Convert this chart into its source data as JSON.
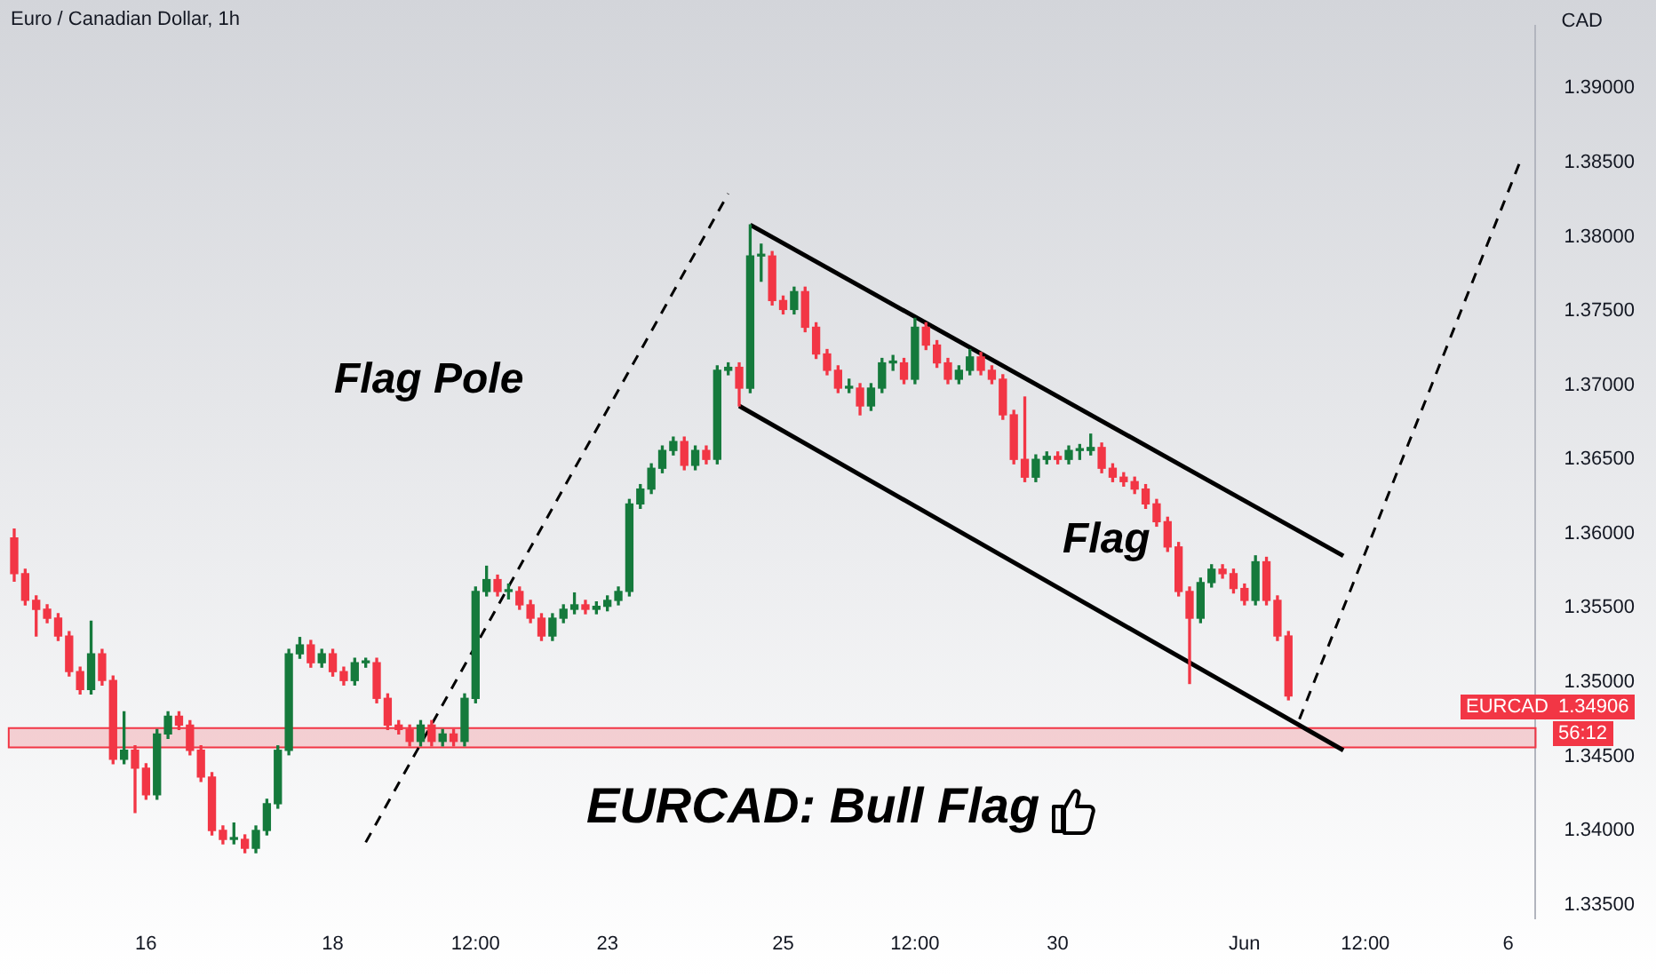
{
  "chart_data": {
    "type": "candlestick",
    "title": "Euro / Canadian Dollar, 1h",
    "ylabel": "CAD",
    "categories": [
      null,
      null,
      null,
      null,
      null,
      null,
      null,
      null,
      null,
      null,
      null,
      null,
      "16",
      null,
      null,
      null,
      null,
      null,
      null,
      null,
      null,
      null,
      null,
      null,
      null,
      null,
      null,
      null,
      null,
      "18",
      null,
      null,
      null,
      null,
      null,
      null,
      null,
      null,
      null,
      null,
      null,
      null,
      "12:00",
      null,
      null,
      null,
      null,
      null,
      null,
      null,
      null,
      null,
      null,
      null,
      "23",
      null,
      null,
      null,
      null,
      null,
      null,
      null,
      null,
      null,
      null,
      null,
      null,
      null,
      null,
      null,
      "25",
      null,
      null,
      null,
      null,
      null,
      null,
      null,
      null,
      null,
      null,
      null,
      "12:00",
      null,
      null,
      null,
      null,
      null,
      null,
      null,
      null,
      null,
      null,
      null,
      null,
      "30",
      null,
      null,
      null,
      null,
      null,
      null,
      null,
      null,
      null,
      null,
      null,
      null,
      null,
      null,
      null,
      null,
      "Jun",
      null,
      null,
      null,
      null,
      null,
      null,
      null,
      null,
      null,
      null,
      "12:00",
      null,
      null,
      null,
      null,
      null,
      null,
      null,
      null,
      null,
      null,
      null,
      null,
      "6",
      null,
      null
    ],
    "ohlc": [
      [
        1.3597,
        1.3603,
        1.3568,
        1.3573
      ],
      [
        1.3573,
        1.3576,
        1.3552,
        1.3555
      ],
      [
        1.3555,
        1.3558,
        1.3531,
        1.3549
      ],
      [
        1.3549,
        1.3552,
        1.354,
        1.3543
      ],
      [
        1.3543,
        1.3546,
        1.3528,
        1.3531
      ],
      [
        1.3531,
        1.3534,
        1.3504,
        1.3507
      ],
      [
        1.3507,
        1.351,
        1.3492,
        1.3495
      ],
      [
        1.3495,
        1.3541,
        1.3492,
        1.3519
      ],
      [
        1.3519,
        1.3522,
        1.3498,
        1.3501
      ],
      [
        1.3501,
        1.3504,
        1.3445,
        1.3448
      ],
      [
        1.3448,
        1.348,
        1.3445,
        1.3454
      ],
      [
        1.3454,
        1.3457,
        1.3412,
        1.3442
      ],
      [
        1.3442,
        1.3445,
        1.3421,
        1.3424
      ],
      [
        1.3424,
        1.3468,
        1.3421,
        1.3465
      ],
      [
        1.3465,
        1.348,
        1.3462,
        1.3477
      ],
      [
        1.3477,
        1.348,
        1.3468,
        1.3471
      ],
      [
        1.3471,
        1.3474,
        1.3451,
        1.3454
      ],
      [
        1.3454,
        1.3457,
        1.3433,
        1.3436
      ],
      [
        1.3436,
        1.3439,
        1.3397,
        1.34
      ],
      [
        1.34,
        1.3403,
        1.3391,
        1.3394
      ],
      [
        1.3394,
        1.3405,
        1.3391,
        1.3394
      ],
      [
        1.3394,
        1.3397,
        1.3385,
        1.3388
      ],
      [
        1.3388,
        1.3403,
        1.3385,
        1.34
      ],
      [
        1.34,
        1.3421,
        1.3397,
        1.3418
      ],
      [
        1.3418,
        1.3457,
        1.3415,
        1.3454
      ],
      [
        1.3454,
        1.3522,
        1.3451,
        1.3519
      ],
      [
        1.3519,
        1.353,
        1.3516,
        1.3525
      ],
      [
        1.3525,
        1.3528,
        1.351,
        1.3513
      ],
      [
        1.3513,
        1.3522,
        1.351,
        1.3519
      ],
      [
        1.3519,
        1.3522,
        1.3504,
        1.3507
      ],
      [
        1.3507,
        1.351,
        1.3498,
        1.3501
      ],
      [
        1.3501,
        1.3516,
        1.3498,
        1.3513
      ],
      [
        1.3513,
        1.3516,
        1.351,
        1.3513
      ],
      [
        1.3513,
        1.3516,
        1.3486,
        1.3489
      ],
      [
        1.3489,
        1.3492,
        1.3468,
        1.3471
      ],
      [
        1.3471,
        1.3474,
        1.3465,
        1.3468
      ],
      [
        1.3468,
        1.3471,
        1.3457,
        1.346
      ],
      [
        1.346,
        1.3474,
        1.3457,
        1.3471
      ],
      [
        1.3471,
        1.3474,
        1.3457,
        1.346
      ],
      [
        1.346,
        1.3468,
        1.3457,
        1.3465
      ],
      [
        1.3465,
        1.3468,
        1.3457,
        1.346
      ],
      [
        1.346,
        1.3492,
        1.3457,
        1.3489
      ],
      [
        1.3489,
        1.3564,
        1.3486,
        1.3561
      ],
      [
        1.3561,
        1.3578,
        1.3558,
        1.3569
      ],
      [
        1.3569,
        1.3572,
        1.3558,
        1.3561
      ],
      [
        1.3561,
        1.3566,
        1.3556,
        1.3561
      ],
      [
        1.3561,
        1.3564,
        1.3549,
        1.3552
      ],
      [
        1.3552,
        1.3555,
        1.354,
        1.3543
      ],
      [
        1.3543,
        1.3546,
        1.3528,
        1.3531
      ],
      [
        1.3531,
        1.3546,
        1.3528,
        1.3543
      ],
      [
        1.3543,
        1.3552,
        1.354,
        1.3549
      ],
      [
        1.3549,
        1.356,
        1.3546,
        1.3552
      ],
      [
        1.3552,
        1.3555,
        1.3546,
        1.3549
      ],
      [
        1.3549,
        1.3554,
        1.3546,
        1.3551
      ],
      [
        1.3551,
        1.3558,
        1.3548,
        1.3555
      ],
      [
        1.3555,
        1.3564,
        1.3552,
        1.3561
      ],
      [
        1.3561,
        1.3623,
        1.3558,
        1.362
      ],
      [
        1.362,
        1.3633,
        1.3617,
        1.363
      ],
      [
        1.363,
        1.3647,
        1.3627,
        1.3644
      ],
      [
        1.3644,
        1.3659,
        1.3641,
        1.3656
      ],
      [
        1.3656,
        1.3665,
        1.3653,
        1.3662
      ],
      [
        1.3662,
        1.3665,
        1.3643,
        1.3646
      ],
      [
        1.3646,
        1.3659,
        1.3643,
        1.3656
      ],
      [
        1.3656,
        1.3659,
        1.3647,
        1.365
      ],
      [
        1.365,
        1.3713,
        1.3647,
        1.371
      ],
      [
        1.371,
        1.3715,
        1.3707,
        1.3712
      ],
      [
        1.3712,
        1.3715,
        1.3686,
        1.3698
      ],
      [
        1.3698,
        1.3808,
        1.3695,
        1.3787
      ],
      [
        1.3787,
        1.3795,
        1.377,
        1.3787
      ],
      [
        1.3787,
        1.379,
        1.3754,
        1.3757
      ],
      [
        1.3757,
        1.376,
        1.3748,
        1.3751
      ],
      [
        1.3751,
        1.3766,
        1.3748,
        1.3763
      ],
      [
        1.3763,
        1.3766,
        1.3736,
        1.3739
      ],
      [
        1.3739,
        1.3742,
        1.3718,
        1.3721
      ],
      [
        1.3721,
        1.3724,
        1.3707,
        1.371
      ],
      [
        1.371,
        1.3713,
        1.3695,
        1.3698
      ],
      [
        1.3698,
        1.3704,
        1.3695,
        1.3698
      ],
      [
        1.3698,
        1.3701,
        1.368,
        1.3686
      ],
      [
        1.3686,
        1.3701,
        1.3683,
        1.3698
      ],
      [
        1.3698,
        1.3718,
        1.3695,
        1.3715
      ],
      [
        1.3715,
        1.372,
        1.371,
        1.3715
      ],
      [
        1.3715,
        1.3718,
        1.3701,
        1.3704
      ],
      [
        1.3704,
        1.3745,
        1.3701,
        1.3739
      ],
      [
        1.3739,
        1.3742,
        1.3724,
        1.3727
      ],
      [
        1.3727,
        1.373,
        1.3712,
        1.3715
      ],
      [
        1.3715,
        1.3718,
        1.3701,
        1.3704
      ],
      [
        1.3704,
        1.3713,
        1.3701,
        1.371
      ],
      [
        1.371,
        1.3724,
        1.3707,
        1.3719
      ],
      [
        1.3719,
        1.3722,
        1.3707,
        1.371
      ],
      [
        1.371,
        1.3713,
        1.3701,
        1.3704
      ],
      [
        1.3704,
        1.3707,
        1.3677,
        1.368
      ],
      [
        1.368,
        1.3683,
        1.3647,
        1.365
      ],
      [
        1.365,
        1.3692,
        1.3635,
        1.3638
      ],
      [
        1.3638,
        1.3653,
        1.3635,
        1.365
      ],
      [
        1.365,
        1.3655,
        1.3647,
        1.3652
      ],
      [
        1.3652,
        1.3655,
        1.3647,
        1.365
      ],
      [
        1.365,
        1.3659,
        1.3647,
        1.3656
      ],
      [
        1.3656,
        1.366,
        1.365,
        1.3656
      ],
      [
        1.3656,
        1.3667,
        1.3653,
        1.3658
      ],
      [
        1.3658,
        1.3661,
        1.3641,
        1.3644
      ],
      [
        1.3644,
        1.3647,
        1.3635,
        1.3638
      ],
      [
        1.3638,
        1.3641,
        1.3632,
        1.3635
      ],
      [
        1.3635,
        1.3638,
        1.3627,
        1.363
      ],
      [
        1.363,
        1.3633,
        1.3617,
        1.362
      ],
      [
        1.362,
        1.3623,
        1.3605,
        1.3608
      ],
      [
        1.3608,
        1.3611,
        1.3588,
        1.3591
      ],
      [
        1.3591,
        1.3594,
        1.3558,
        1.3561
      ],
      [
        1.3561,
        1.3564,
        1.3499,
        1.3543
      ],
      [
        1.3543,
        1.357,
        1.354,
        1.3567
      ],
      [
        1.3567,
        1.3579,
        1.3564,
        1.3576
      ],
      [
        1.3576,
        1.3579,
        1.357,
        1.3573
      ],
      [
        1.3573,
        1.3576,
        1.356,
        1.3563
      ],
      [
        1.3563,
        1.3566,
        1.3552,
        1.3555
      ],
      [
        1.3555,
        1.3585,
        1.3552,
        1.3581
      ],
      [
        1.3581,
        1.3584,
        1.3552,
        1.3555
      ],
      [
        1.3555,
        1.3558,
        1.3528,
        1.3531
      ],
      [
        1.3531,
        1.3534,
        1.3488,
        1.34906
      ],
      null,
      null,
      null,
      null,
      null,
      null,
      null,
      null,
      null,
      null,
      null,
      null,
      null,
      null,
      null,
      null,
      null,
      null,
      null,
      null,
      null,
      null
    ],
    "colors": [
      "#f23645",
      "#f23645",
      "#f23645",
      "#f23645",
      "#f23645",
      "#f23645",
      "#f23645",
      "#157a3c",
      "#f23645",
      "#f23645",
      "#157a3c",
      "#f23645",
      "#f23645",
      "#157a3c",
      "#157a3c",
      "#f23645",
      "#f23645",
      "#f23645",
      "#f23645",
      "#f23645",
      "#157a3c",
      "#f23645",
      "#157a3c",
      "#157a3c",
      "#157a3c",
      "#157a3c",
      "#157a3c",
      "#f23645",
      "#157a3c",
      "#f23645",
      "#f23645",
      "#157a3c",
      "#157a3c",
      "#f23645",
      "#f23645",
      "#f23645",
      "#f23645",
      "#157a3c",
      "#f23645",
      "#157a3c",
      "#f23645",
      "#157a3c",
      "#157a3c",
      "#157a3c",
      "#f23645",
      "#157a3c",
      "#f23645",
      "#f23645",
      "#f23645",
      "#157a3c",
      "#157a3c",
      "#157a3c",
      "#f23645",
      "#157a3c",
      "#157a3c",
      "#157a3c",
      "#157a3c",
      "#157a3c",
      "#157a3c",
      "#157a3c",
      "#157a3c",
      "#f23645",
      "#157a3c",
      "#f23645",
      "#157a3c",
      "#157a3c",
      "#f23645",
      "#157a3c",
      "#157a3c",
      "#f23645",
      "#f23645",
      "#157a3c",
      "#f23645",
      "#f23645",
      "#f23645",
      "#f23645",
      "#157a3c",
      "#f23645",
      "#157a3c",
      "#157a3c",
      "#157a3c",
      "#f23645",
      "#157a3c",
      "#f23645",
      "#f23645",
      "#f23645",
      "#157a3c",
      "#157a3c",
      "#f23645",
      "#f23645",
      "#f23645",
      "#f23645",
      "#f23645",
      "#157a3c",
      "#157a3c",
      "#f23645",
      "#157a3c",
      "#157a3c",
      "#157a3c",
      "#f23645",
      "#f23645",
      "#f23645",
      "#f23645",
      "#f23645",
      "#f23645",
      "#f23645",
      "#f23645",
      "#f23645",
      "#157a3c",
      "#157a3c",
      "#f23645",
      "#f23645",
      "#f23645",
      "#157a3c",
      "#f23645",
      "#f23645",
      "#f23645",
      null,
      null,
      null,
      null,
      null,
      null,
      null,
      null,
      null,
      null,
      null,
      null,
      null,
      null,
      null,
      null,
      null,
      null,
      null,
      null,
      null,
      null
    ],
    "series": [
      {
        "type": "line",
        "color": "#000000",
        "line_style": "solid",
        "values": [
          null,
          null,
          null,
          null,
          null,
          null,
          null,
          null,
          null,
          null,
          null,
          null,
          null,
          null,
          null,
          null,
          null,
          null,
          null,
          null,
          null,
          null,
          null,
          null,
          null,
          null,
          null,
          null,
          null,
          null,
          null,
          null,
          null,
          null,
          null,
          null,
          null,
          null,
          null,
          null,
          null,
          null,
          null,
          null,
          null,
          null,
          null,
          null,
          null,
          null,
          null,
          null,
          null,
          null,
          null,
          null,
          null,
          null,
          null,
          null,
          null,
          null,
          null,
          null,
          null,
          null,
          null,
          1.3808,
          null,
          null,
          null,
          null,
          null,
          null,
          null,
          null,
          null,
          null,
          null,
          null,
          null,
          null,
          null,
          null,
          null,
          null,
          null,
          null,
          null,
          null,
          null,
          null,
          null,
          null,
          null,
          null,
          null,
          null,
          null,
          null,
          null,
          null,
          null,
          null,
          null,
          null,
          null,
          null,
          null,
          null,
          null,
          null,
          null,
          null,
          null,
          null,
          null,
          null,
          null,
          null,
          null,
          1.3585,
          null,
          null,
          null,
          null,
          null,
          null,
          null,
          null,
          null,
          null,
          null,
          null,
          null,
          null,
          null,
          null,
          null
        ]
      },
      {
        "type": "line",
        "color": "#000000",
        "line_style": "solid",
        "values": [
          null,
          null,
          null,
          null,
          null,
          null,
          null,
          null,
          null,
          null,
          null,
          null,
          null,
          null,
          null,
          null,
          null,
          null,
          null,
          null,
          null,
          null,
          null,
          null,
          null,
          null,
          null,
          null,
          null,
          null,
          null,
          null,
          null,
          null,
          null,
          null,
          null,
          null,
          null,
          null,
          null,
          null,
          null,
          null,
          null,
          null,
          null,
          null,
          null,
          null,
          null,
          null,
          null,
          null,
          null,
          null,
          null,
          null,
          null,
          null,
          null,
          null,
          null,
          null,
          null,
          null,
          1.3686,
          null,
          null,
          null,
          null,
          null,
          null,
          null,
          null,
          null,
          null,
          null,
          null,
          null,
          null,
          null,
          null,
          null,
          null,
          null,
          null,
          null,
          null,
          null,
          null,
          null,
          null,
          null,
          null,
          null,
          null,
          null,
          null,
          null,
          null,
          null,
          null,
          null,
          null,
          null,
          null,
          null,
          null,
          null,
          null,
          null,
          null,
          null,
          null,
          null,
          null,
          null,
          null,
          null,
          null,
          1.3454,
          null,
          null,
          null,
          null,
          null,
          null,
          null,
          null,
          null,
          null,
          null,
          null,
          null,
          null,
          null,
          null,
          null
        ]
      },
      {
        "type": "line",
        "color": "#000000",
        "line_style": "dashed",
        "values": [
          null,
          null,
          null,
          null,
          null,
          null,
          null,
          null,
          null,
          null,
          null,
          null,
          null,
          null,
          null,
          null,
          null,
          null,
          null,
          null,
          null,
          null,
          null,
          null,
          null,
          null,
          null,
          null,
          null,
          null,
          null,
          null,
          1.3392,
          null,
          null,
          null,
          null,
          null,
          null,
          null,
          null,
          null,
          null,
          null,
          null,
          null,
          null,
          null,
          null,
          null,
          null,
          null,
          null,
          null,
          null,
          null,
          null,
          null,
          null,
          null,
          null,
          null,
          null,
          null,
          null,
          1.3829,
          null,
          null,
          null,
          null,
          null,
          null,
          null,
          null,
          null,
          null,
          null,
          null,
          null,
          null,
          null,
          null,
          null,
          null,
          null,
          null,
          null,
          null,
          null,
          null,
          null,
          null,
          null,
          null,
          null,
          null,
          null,
          null,
          null,
          null,
          null,
          null,
          null,
          null,
          null,
          null,
          null,
          null,
          null,
          null,
          null,
          null,
          null,
          null,
          null,
          null,
          null,
          null,
          null,
          null,
          null,
          null,
          null,
          null,
          null,
          null,
          null,
          null,
          null,
          null,
          null,
          null,
          null,
          null,
          null,
          null,
          null,
          null,
          null
        ]
      },
      {
        "type": "line",
        "color": "#000000",
        "line_style": "dashed",
        "values": [
          null,
          null,
          null,
          null,
          null,
          null,
          null,
          null,
          null,
          null,
          null,
          null,
          null,
          null,
          null,
          null,
          null,
          null,
          null,
          null,
          null,
          null,
          null,
          null,
          null,
          null,
          null,
          null,
          null,
          null,
          null,
          null,
          null,
          null,
          null,
          null,
          null,
          null,
          null,
          null,
          null,
          null,
          null,
          null,
          null,
          null,
          null,
          null,
          null,
          null,
          null,
          null,
          null,
          null,
          null,
          null,
          null,
          null,
          null,
          null,
          null,
          null,
          null,
          null,
          null,
          null,
          null,
          null,
          null,
          null,
          null,
          null,
          null,
          null,
          null,
          null,
          null,
          null,
          null,
          null,
          null,
          null,
          null,
          null,
          null,
          null,
          null,
          null,
          null,
          null,
          null,
          null,
          null,
          null,
          null,
          null,
          null,
          null,
          null,
          null,
          null,
          null,
          null,
          null,
          null,
          null,
          null,
          null,
          null,
          null,
          null,
          null,
          null,
          null,
          null,
          null,
          null,
          1.3475,
          null,
          null,
          null,
          null,
          null,
          null,
          null,
          null,
          null,
          null,
          null,
          null,
          null,
          null,
          null,
          null,
          null,
          null,
          null,
          1.3849,
          null
        ]
      }
    ],
    "bands": [
      {
        "axis": "y",
        "from": 1.3456,
        "to": 1.3469,
        "color": "#f23645"
      }
    ],
    "annotations": [
      "Flag Pole",
      "Flag",
      "EURCAD: Bull Flag",
      "EURCAD",
      "1.34906",
      "56:12"
    ],
    "ylim": [
      1.3341,
      1.3942
    ],
    "yticks": [
      {
        "value": 1.335,
        "label": "1.33500"
      },
      {
        "value": 1.34,
        "label": "1.34000"
      },
      {
        "value": 1.345,
        "label": "1.34500"
      },
      {
        "value": 1.35,
        "label": "1.35000"
      },
      {
        "value": 1.355,
        "label": "1.35500"
      },
      {
        "value": 1.36,
        "label": "1.36000"
      },
      {
        "value": 1.365,
        "label": "1.36500"
      },
      {
        "value": 1.37,
        "label": "1.37000"
      },
      {
        "value": 1.375,
        "label": "1.37500"
      },
      {
        "value": 1.38,
        "label": "1.38000"
      },
      {
        "value": 1.385,
        "label": "1.38500"
      },
      {
        "value": 1.39,
        "label": "1.39000"
      }
    ],
    "grid": false,
    "legend": false,
    "marker": "none"
  }
}
